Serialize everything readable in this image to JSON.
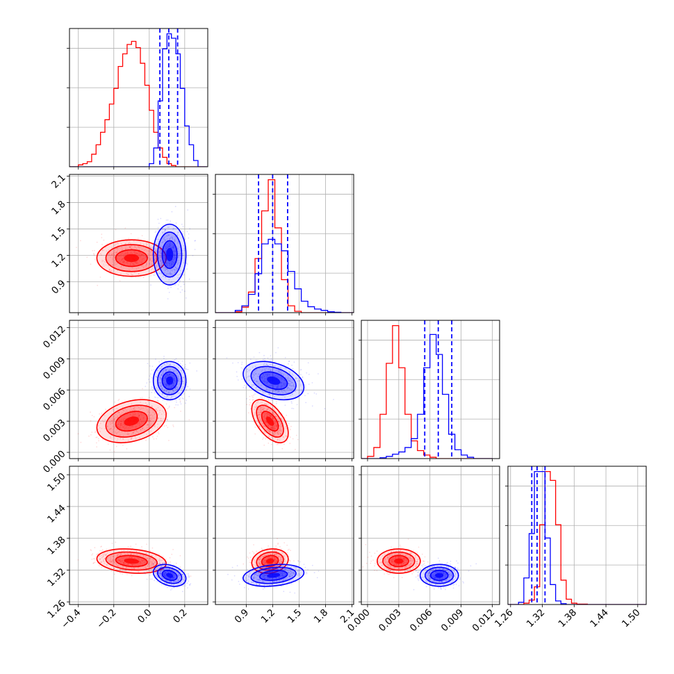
{
  "chart_data": {
    "type": "corner",
    "layout": "lower-triangle",
    "n_params": 4,
    "series": [
      {
        "color": "#ff0000",
        "means": [
          -0.1,
          1.17,
          0.003,
          1.337
        ],
        "sds": [
          0.085,
          0.09,
          0.0009,
          0.01
        ],
        "corr": [
          [
            1,
            0,
            0.3,
            -0.2
          ],
          [
            0,
            1,
            -0.55,
            0.15
          ],
          [
            0.3,
            -0.55,
            1,
            0
          ],
          [
            -0.2,
            0.15,
            0,
            1
          ]
        ]
      },
      {
        "color": "#0000ff",
        "means": [
          0.115,
          1.21,
          0.0069,
          1.31
        ],
        "sds": [
          0.04,
          0.15,
          0.0008,
          0.009
        ],
        "corr": [
          [
            1,
            0,
            0,
            -0.3
          ],
          [
            0,
            1,
            -0.35,
            0.25
          ],
          [
            0,
            -0.35,
            1,
            0
          ],
          [
            -0.3,
            0.25,
            0,
            1
          ]
        ]
      }
    ],
    "quantile_lines": {
      "color": "#0000ff",
      "values": [
        [
          0.06,
          0.11,
          0.16
        ],
        [
          1.04,
          1.2,
          1.37
        ],
        [
          0.0055,
          0.0068,
          0.0081
        ],
        [
          1.3,
          1.31,
          1.325
        ]
      ]
    },
    "histograms": [
      {
        "edges": [
          -0.45,
          -0.425,
          -0.4,
          -0.375,
          -0.35,
          -0.325,
          -0.3,
          -0.275,
          -0.25,
          -0.225,
          -0.2,
          -0.175,
          -0.15,
          -0.125,
          -0.1,
          -0.075,
          -0.05,
          -0.025,
          0.0,
          0.025,
          0.05,
          0.075,
          0.1,
          0.125,
          0.15,
          0.175,
          0.2,
          0.225,
          0.25,
          0.275,
          0.3,
          0.325
        ],
        "red": [
          0,
          0,
          3,
          5,
          8,
          20,
          35,
          55,
          75,
          100,
          125,
          160,
          180,
          195,
          200,
          190,
          165,
          130,
          90,
          55,
          30,
          15,
          5,
          2,
          0,
          0,
          0,
          0,
          0,
          0,
          0
        ],
        "blue": [
          0,
          0,
          0,
          0,
          0,
          0,
          0,
          0,
          0,
          0,
          0,
          0,
          0,
          0,
          0,
          0,
          0,
          0,
          5,
          30,
          105,
          188,
          212,
          205,
          180,
          125,
          65,
          35,
          10,
          0,
          0
        ]
      },
      {
        "edges": [
          0.55,
          0.625,
          0.7,
          0.775,
          0.85,
          0.925,
          1.0,
          1.075,
          1.15,
          1.225,
          1.3,
          1.375,
          1.45,
          1.525,
          1.6,
          1.675,
          1.75,
          1.825,
          1.9,
          1.975,
          2.05,
          2.125
        ],
        "red": [
          0,
          0,
          0,
          2,
          12,
          45,
          118,
          222,
          290,
          185,
          72,
          15,
          3,
          0,
          0,
          0,
          0,
          0,
          0,
          0,
          0
        ],
        "blue": [
          0,
          0,
          0,
          5,
          15,
          40,
          85,
          150,
          160,
          150,
          135,
          90,
          52,
          25,
          13,
          8,
          5,
          2,
          1,
          0,
          0
        ]
      },
      {
        "edges": [
          -0.0006,
          0.0,
          0.0006,
          0.0012,
          0.0018,
          0.0024,
          0.003,
          0.0036,
          0.0042,
          0.0048,
          0.0054,
          0.006,
          0.0066,
          0.0072,
          0.0078,
          0.0084,
          0.009,
          0.0096,
          0.0102,
          0.0108,
          0.0114,
          0.012
        ],
        "red": [
          0,
          5,
          25,
          100,
          215,
          300,
          205,
          100,
          40,
          18,
          8,
          3,
          0,
          0,
          0,
          0,
          0,
          0,
          0,
          0,
          0
        ],
        "blue": [
          0,
          0,
          0,
          2,
          5,
          10,
          15,
          25,
          45,
          100,
          205,
          280,
          235,
          145,
          55,
          20,
          8,
          3,
          0,
          0,
          0
        ]
      },
      {
        "edges": [
          1.255,
          1.265,
          1.275,
          1.285,
          1.295,
          1.305,
          1.315,
          1.325,
          1.335,
          1.345,
          1.355,
          1.365,
          1.375,
          1.385,
          1.395,
          1.405,
          1.415,
          1.425,
          1.435,
          1.445,
          1.455,
          1.465,
          1.475,
          1.485,
          1.495,
          1.505,
          1.515
        ],
        "red": [
          0,
          0,
          0,
          3,
          10,
          40,
          180,
          300,
          280,
          180,
          55,
          12,
          3,
          1,
          1,
          0,
          0,
          0,
          0,
          0,
          0,
          0,
          0,
          0,
          0,
          0
        ],
        "blue": [
          0,
          0,
          5,
          60,
          160,
          300,
          300,
          150,
          45,
          8,
          2,
          0,
          0,
          0,
          0,
          0,
          0,
          0,
          0,
          0,
          0,
          0,
          0,
          0,
          0,
          0
        ]
      }
    ],
    "axes_ranges": [
      [
        -0.45,
        0.33
      ],
      [
        0.55,
        2.12
      ],
      [
        -0.0006,
        0.0127
      ],
      [
        1.255,
        1.516
      ]
    ],
    "ticks": [
      {
        "values": [
          -0.4,
          -0.2,
          0.0,
          0.2
        ],
        "labels": [
          "−0.4",
          "−0.2",
          "0.0",
          "0.2"
        ]
      },
      {
        "values": [
          0.9,
          1.2,
          1.5,
          1.8,
          2.1
        ],
        "labels": [
          "0.9",
          "1.2",
          "1.5",
          "1.8",
          "2.1"
        ]
      },
      {
        "values": [
          0.0,
          0.003,
          0.006,
          0.009,
          0.012
        ],
        "labels": [
          "0.000",
          "0.003",
          "0.006",
          "0.009",
          "0.012"
        ]
      },
      {
        "values": [
          1.26,
          1.32,
          1.38,
          1.44,
          1.5
        ],
        "labels": [
          "1.26",
          "1.32",
          "1.38",
          "1.44",
          "1.50"
        ]
      }
    ],
    "grid": true,
    "xlabel": "",
    "ylabel": ""
  }
}
